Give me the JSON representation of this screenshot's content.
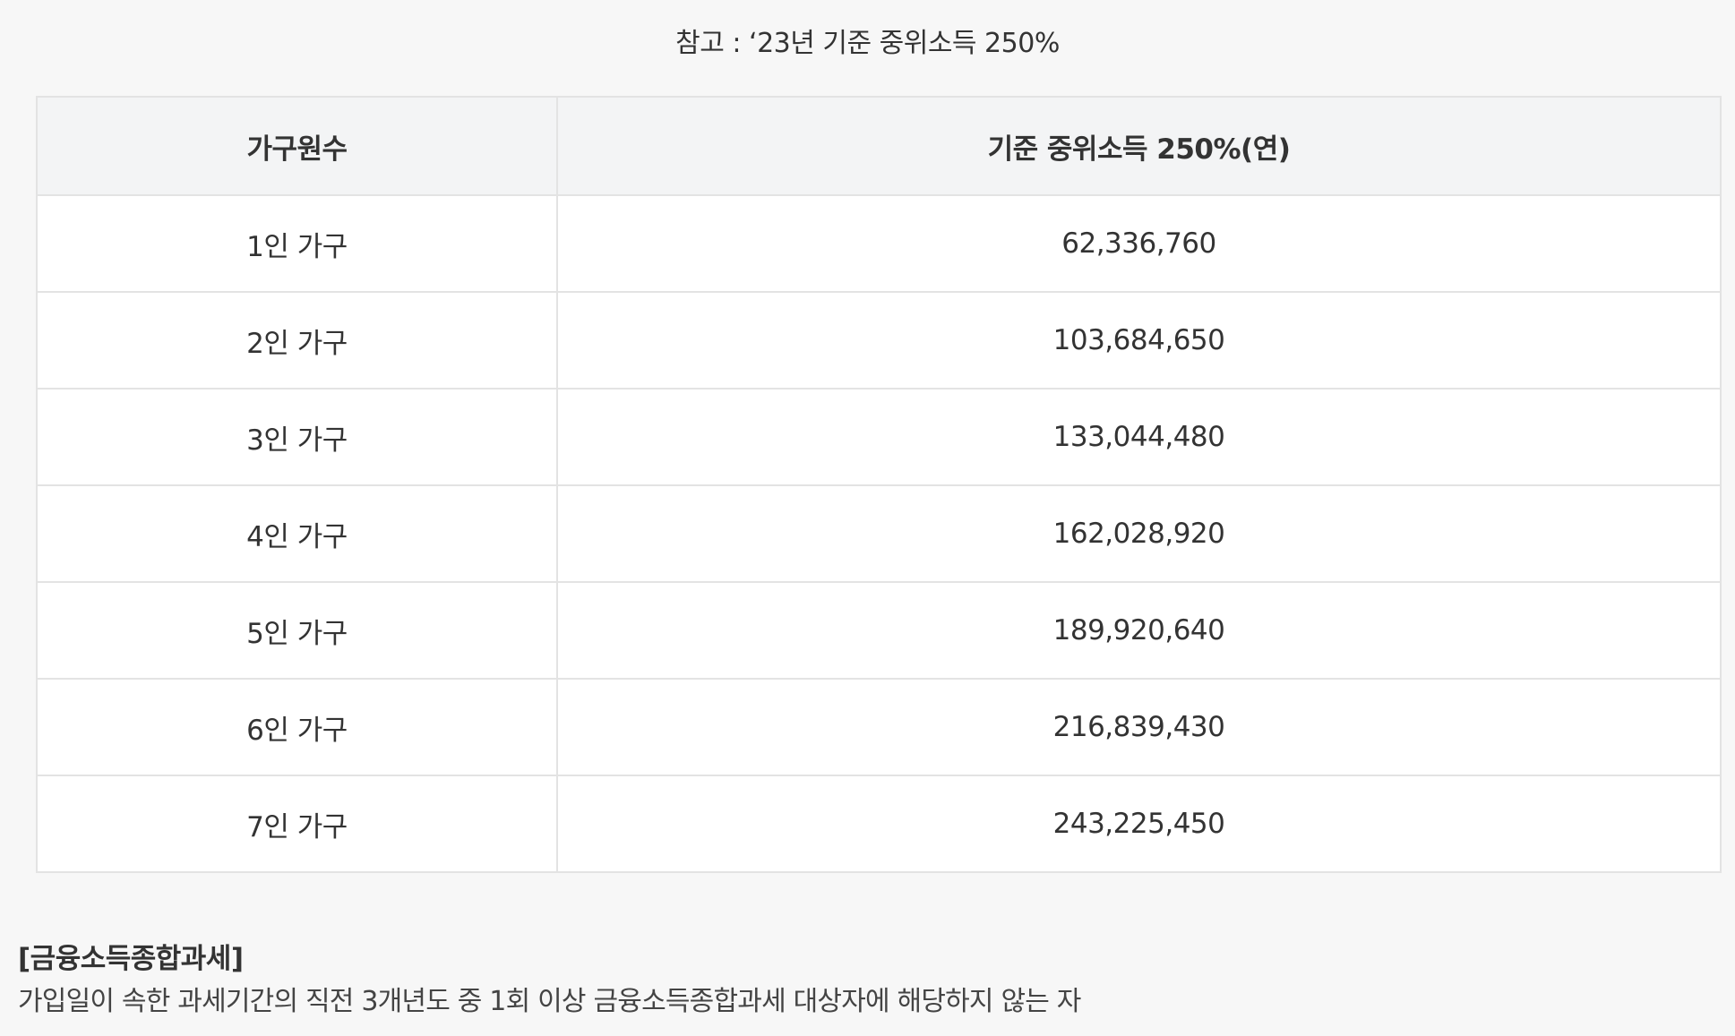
{
  "note": "참고 : ‘23년 기준 중위소득 250%",
  "table": {
    "headers": [
      "가구원수",
      "기준 중위소득 250%(연)"
    ],
    "rows": [
      [
        "1인 가구",
        "62,336,760"
      ],
      [
        "2인 가구",
        "103,684,650"
      ],
      [
        "3인 가구",
        "133,044,480"
      ],
      [
        "4인 가구",
        "162,028,920"
      ],
      [
        "5인 가구",
        "189,920,640"
      ],
      [
        "6인 가구",
        "216,839,430"
      ],
      [
        "7인 가구",
        "243,225,450"
      ]
    ]
  },
  "section": {
    "title": "[금융소득종합과세]",
    "description": "가입일이 속한 과세기간의 직전 3개년도 중 1회 이상 금융소득종합과세 대상자에 해당하지 않는 자"
  }
}
